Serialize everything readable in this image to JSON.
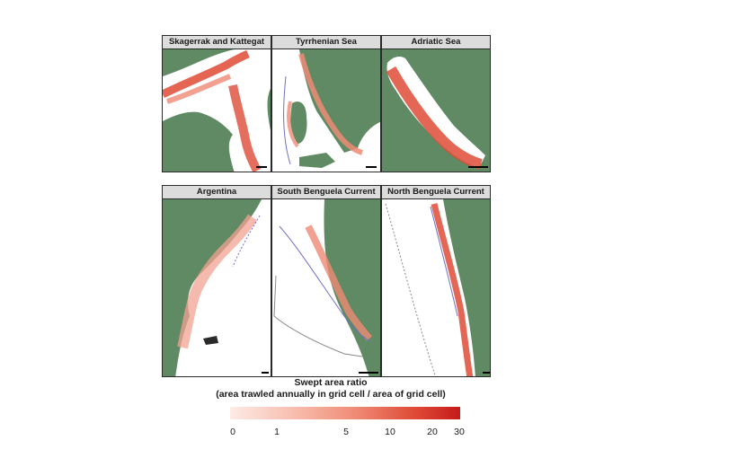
{
  "panels": [
    {
      "title": "Skagerrak and Kattegat"
    },
    {
      "title": "Tyrrhenian Sea"
    },
    {
      "title": "Adriatic Sea"
    },
    {
      "title": "Argentina"
    },
    {
      "title": "South Benguela Current"
    },
    {
      "title": "North Benguela Current"
    }
  ],
  "legend": {
    "title_line1": "Swept area ratio",
    "title_line2": "(area trawled annually in grid cell / area of grid cell)",
    "ticks": [
      "0",
      "1",
      "5",
      "10",
      "20",
      "30"
    ],
    "color_low": "#fdebe6",
    "color_high": "#c51b1b"
  },
  "colors": {
    "land": "#5f8a63",
    "sea": "#ffffff",
    "contour": "#6f6fc8"
  }
}
